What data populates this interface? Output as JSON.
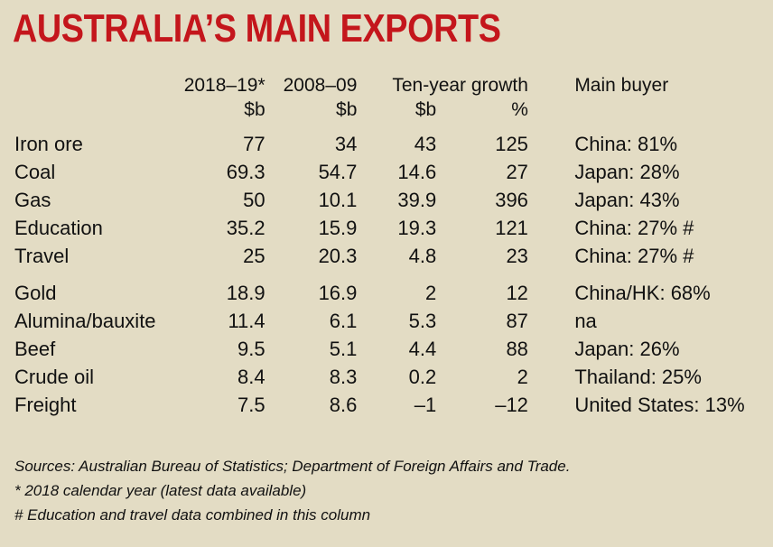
{
  "title": "AUSTRALIA’S MAIN EXPORTS",
  "headers": {
    "col_2018": "2018–19*",
    "col_2008": "2008–09",
    "col_growth": "Ten-year growth",
    "col_buyer": "Main buyer",
    "unit_2018": "$b",
    "unit_2008": "$b",
    "unit_growth_b": "$b",
    "unit_growth_pct": "%"
  },
  "rows": [
    {
      "name": "Iron ore",
      "y2018": "77",
      "y2008": "34",
      "growth_b": "43",
      "growth_pct": "125",
      "buyer": "China: 81%"
    },
    {
      "name": "Coal",
      "y2018": "69.3",
      "y2008": "54.7",
      "growth_b": "14.6",
      "growth_pct": "27",
      "buyer": "Japan: 28%"
    },
    {
      "name": "Gas",
      "y2018": "50",
      "y2008": "10.1",
      "growth_b": "39.9",
      "growth_pct": "396",
      "buyer": "Japan: 43%"
    },
    {
      "name": "Education",
      "y2018": "35.2",
      "y2008": "15.9",
      "growth_b": "19.3",
      "growth_pct": "121",
      "buyer": "China: 27% #"
    },
    {
      "name": "Travel",
      "y2018": "25",
      "y2008": "20.3",
      "growth_b": "4.8",
      "growth_pct": "23",
      "buyer": "China: 27% #"
    },
    {
      "name": "Gold",
      "y2018": "18.9",
      "y2008": "16.9",
      "growth_b": "2",
      "growth_pct": "12",
      "buyer": "China/HK: 68%"
    },
    {
      "name": "Alumina/bauxite",
      "y2018": "11.4",
      "y2008": "6.1",
      "growth_b": "5.3",
      "growth_pct": "87",
      "buyer": "na"
    },
    {
      "name": "Beef",
      "y2018": "9.5",
      "y2008": "5.1",
      "growth_b": "4.4",
      "growth_pct": "88",
      "buyer": "Japan: 26%"
    },
    {
      "name": "Crude oil",
      "y2018": "8.4",
      "y2008": "8.3",
      "growth_b": "0.2",
      "growth_pct": "2",
      "buyer": "Thailand: 25%"
    },
    {
      "name": "Freight",
      "y2018": "7.5",
      "y2008": "8.6",
      "growth_b": "–1",
      "growth_pct": "–12",
      "buyer": "United States: 13%"
    }
  ],
  "notes": {
    "sources": "Sources: Australian Bureau of Statistics; Department of Foreign Affairs and Trade.",
    "footnote_star": "* 2018 calendar year (latest data available)",
    "footnote_hash": "# Education and travel data combined in this column"
  },
  "colors": {
    "background": "#e3dcc4",
    "title": "#c4161c",
    "text": "#111111"
  }
}
